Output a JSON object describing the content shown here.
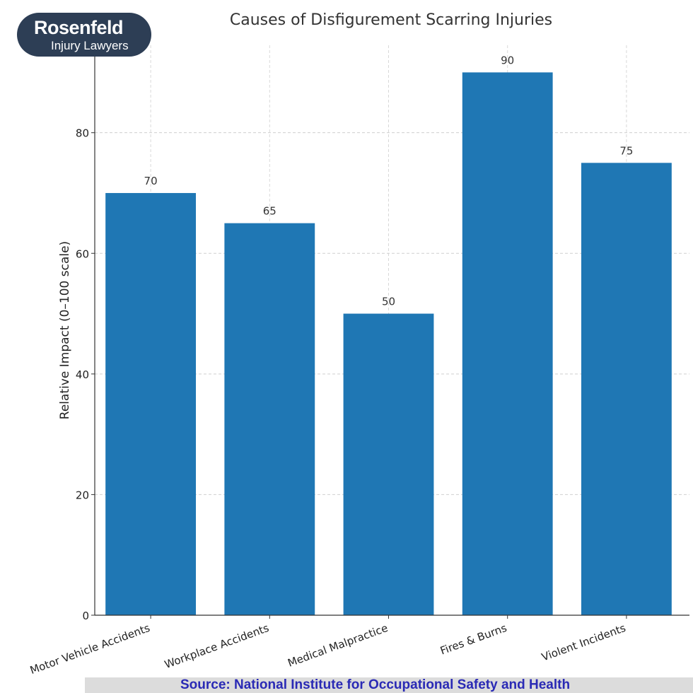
{
  "brand": {
    "name": "Rosenfeld",
    "tagline": "Injury Lawyers",
    "color": "#2d3e55"
  },
  "chart_data": {
    "type": "bar",
    "title": "Causes of Disfigurement Scarring Injuries",
    "xlabel": "",
    "ylabel": "Relative Impact (0–100 scale)",
    "categories": [
      "Motor Vehicle Accidents",
      "Workplace Accidents",
      "Medical Malpractice",
      "Fires & Burns",
      "Violent Incidents"
    ],
    "values": [
      70,
      65,
      50,
      90,
      75
    ],
    "data_labels": [
      "70",
      "65",
      "50",
      "90",
      "75"
    ],
    "ylim": [
      0,
      94.5
    ],
    "yticks": [
      0,
      20,
      40,
      60,
      80
    ],
    "grid": true,
    "bar_color": "#1f77b4"
  },
  "source": {
    "text": "Source:  National Institute for Occupational Safety and Health",
    "color": "#2a2ab5"
  }
}
